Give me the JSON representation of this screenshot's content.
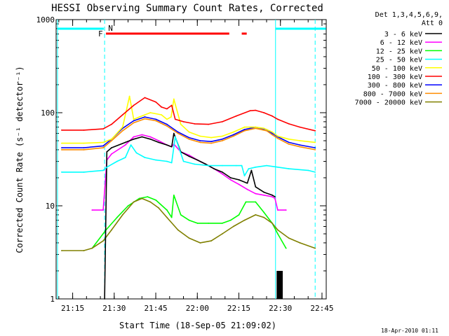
{
  "chart_data": {
    "type": "line",
    "title": "HESSI Observing Summary Count Rates, Corrected",
    "xlabel": "Start Time (18-Sep-05 21:09:02)",
    "ylabel": "Corrected Count Rate (s⁻¹ detector⁻¹)",
    "yscale": "log",
    "ylim": [
      1,
      1000
    ],
    "xlim_minutes_after_start": [
      0,
      97.5
    ],
    "x_tick_labels": [
      "21:15",
      "21:30",
      "21:45",
      "22:00",
      "22:15",
      "22:30",
      "22:45"
    ],
    "y_tick_labels": [
      "1",
      "10",
      "100",
      "1000"
    ],
    "legend_header": [
      "Det 1,3,4,5,6,9,",
      "Att 0"
    ],
    "legend_position": "right-outside",
    "footer": "18-Apr-2010 01:11",
    "series": [
      {
        "name": "3 - 6 keV",
        "color": "#000000",
        "x": [
          17.5,
          18.3,
          20,
          25,
          28,
          31,
          34,
          37,
          40,
          41.7,
          42.5,
          45,
          48,
          51,
          54,
          57,
          60,
          63,
          66,
          69,
          70.5,
          72,
          75,
          78,
          79
        ],
        "y": [
          1,
          38,
          42,
          48,
          52,
          55,
          52,
          48,
          45,
          43,
          60,
          38,
          34,
          31,
          28,
          25,
          23,
          20,
          19,
          17.5,
          24,
          16,
          14,
          13,
          12.5
        ]
      },
      {
        "name": "6 - 12 keV",
        "color": "#ff00ff",
        "x": [
          13,
          17,
          18.3,
          20,
          25,
          28,
          31,
          34,
          37,
          40,
          41.7,
          42.5,
          45,
          48,
          51,
          54,
          57,
          60,
          63,
          66,
          69,
          72,
          75,
          78,
          79,
          80,
          83
        ],
        "y": [
          9,
          9,
          31,
          36,
          45,
          55,
          58,
          55,
          50,
          45,
          43,
          46,
          38,
          35,
          31,
          28,
          25,
          22,
          19,
          17,
          15,
          13.5,
          13,
          12.5,
          12,
          9,
          9
        ]
      },
      {
        "name": "12 - 25 keV",
        "color": "#00ff00",
        "x": [
          13,
          18,
          22,
          26,
          30,
          33,
          36,
          40,
          41.7,
          42.5,
          45,
          48,
          51,
          55,
          60,
          63,
          66,
          68.5,
          72,
          75,
          78,
          80,
          83
        ],
        "y": [
          3.5,
          5.5,
          7.5,
          10,
          12,
          12.5,
          11.5,
          9,
          7.5,
          13,
          8,
          7,
          6.5,
          6.5,
          6.5,
          7,
          8,
          11,
          11,
          8.5,
          6.5,
          5,
          3.5
        ]
      },
      {
        "name": "25 - 50 keV",
        "color": "#00ffff",
        "x": [
          2,
          10,
          17,
          18.3,
          22,
          25,
          27,
          29,
          32,
          36,
          40,
          41.7,
          43,
          46,
          50,
          55,
          60,
          65,
          67,
          68,
          69.5,
          72,
          76,
          80,
          84,
          91,
          93.5
        ],
        "y": [
          23,
          23,
          24,
          26,
          30,
          33,
          45,
          37,
          33,
          31,
          30,
          29,
          55,
          30,
          28,
          27,
          27,
          27,
          27,
          21,
          25,
          26,
          27,
          26,
          25,
          24,
          23
        ]
      },
      {
        "name": "50 - 100 keV",
        "color": "#ffff00",
        "x": [
          2,
          10,
          17,
          20,
          24,
          26.5,
          28,
          30,
          34,
          38,
          40,
          41.5,
          42.5,
          45,
          48,
          52,
          56,
          60,
          64,
          68,
          72,
          75,
          78,
          80,
          84,
          88,
          93.5
        ],
        "y": [
          47,
          47,
          48,
          52,
          70,
          150,
          85,
          90,
          100,
          95,
          85,
          90,
          140,
          75,
          62,
          56,
          54,
          56,
          62,
          70,
          70,
          68,
          62,
          56,
          52,
          50,
          48
        ]
      },
      {
        "name": "100 - 300 keV",
        "color": "#ff0000",
        "x": [
          2,
          10,
          17,
          20,
          24,
          28,
          32,
          36,
          38,
          40,
          41.7,
          43,
          46,
          50,
          55,
          60,
          65,
          70,
          72,
          75,
          78,
          80,
          84,
          88,
          93.5
        ],
        "y": [
          65,
          65,
          67,
          75,
          95,
          120,
          145,
          130,
          115,
          110,
          120,
          85,
          80,
          76,
          75,
          80,
          92,
          105,
          106,
          100,
          92,
          85,
          76,
          70,
          64
        ]
      },
      {
        "name": "300 - 800 keV",
        "color": "#0000ff",
        "x": [
          2,
          10,
          17,
          20,
          24,
          28,
          32,
          36,
          40,
          44,
          48,
          52,
          56,
          60,
          64,
          68,
          72,
          76,
          78,
          80,
          84,
          88,
          93.5
        ],
        "y": [
          42,
          42,
          44,
          52,
          68,
          82,
          90,
          85,
          75,
          62,
          54,
          50,
          49,
          52,
          58,
          66,
          70,
          66,
          60,
          55,
          48,
          45,
          42
        ]
      },
      {
        "name": "800 - 7000 keV",
        "color": "#ff8c00",
        "x": [
          2,
          10,
          17,
          20,
          24,
          28,
          32,
          36,
          40,
          44,
          48,
          52,
          56,
          60,
          64,
          68,
          72,
          76,
          78,
          80,
          84,
          88,
          93.5
        ],
        "y": [
          40,
          40,
          42,
          50,
          64,
          78,
          86,
          82,
          72,
          60,
          52,
          48,
          47,
          50,
          56,
          64,
          68,
          64,
          58,
          53,
          46,
          43,
          40
        ]
      },
      {
        "name": "7000 - 20000 keV",
        "color": "#808000",
        "x": [
          2,
          10,
          13,
          17,
          20,
          24,
          28,
          31,
          34,
          37,
          40,
          44,
          48,
          52,
          56,
          60,
          64,
          68,
          72,
          75,
          78,
          80,
          84,
          88,
          93.5
        ],
        "y": [
          3.3,
          3.3,
          3.5,
          4.2,
          5.5,
          8,
          11,
          12,
          11,
          9.5,
          7.5,
          5.5,
          4.5,
          4,
          4.2,
          5,
          6,
          7,
          8,
          7.5,
          6.5,
          5.5,
          4.5,
          4,
          3.5
        ]
      }
    ],
    "flags": [
      {
        "label": "F",
        "color": "#ff0000"
      },
      {
        "label": "N",
        "color": "#00ffff"
      }
    ]
  }
}
